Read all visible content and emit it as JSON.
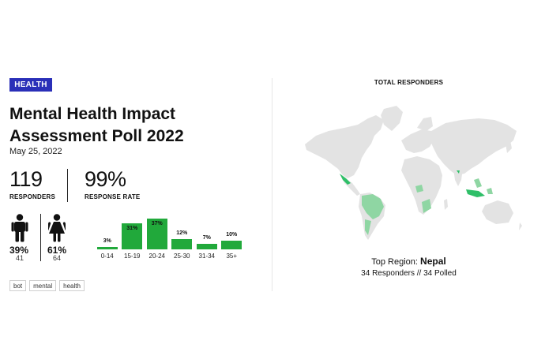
{
  "badge": "HEALTH",
  "title": "Mental Health Impact Assessment Poll 2022",
  "date": "May 25, 2022",
  "stats": {
    "responders_value": "119",
    "responders_label": "RESPONDERS",
    "rate_value": "99%",
    "rate_label": "RESPONSE RATE"
  },
  "gender": {
    "male_pct": "39%",
    "male_count": "41",
    "female_pct": "61%",
    "female_count": "64"
  },
  "chart_data": {
    "type": "bar",
    "categories": [
      "0-14",
      "15-19",
      "20-24",
      "25-30",
      "31-34",
      "35+"
    ],
    "values": [
      3,
      31,
      37,
      12,
      7,
      10
    ],
    "labels": [
      "3%",
      "31%",
      "37%",
      "12%",
      "7%",
      "10%"
    ],
    "title": "",
    "xlabel": "",
    "ylabel": "",
    "ylim": [
      0,
      40
    ],
    "color": "#21a93b"
  },
  "tags": [
    "bot",
    "mental",
    "health"
  ],
  "map": {
    "title": "TOTAL RESPONDERS",
    "top_region_label": "Top Region:",
    "top_region_value": "Nepal",
    "responders_text": "34 Responders // 34 Polled",
    "land_color": "#e3e3e3",
    "highlight_color": "#8fd6a3",
    "highlight_strong": "#2fbf68"
  },
  "colors": {
    "accent": "#2a2fb8",
    "bar": "#21a93b"
  }
}
